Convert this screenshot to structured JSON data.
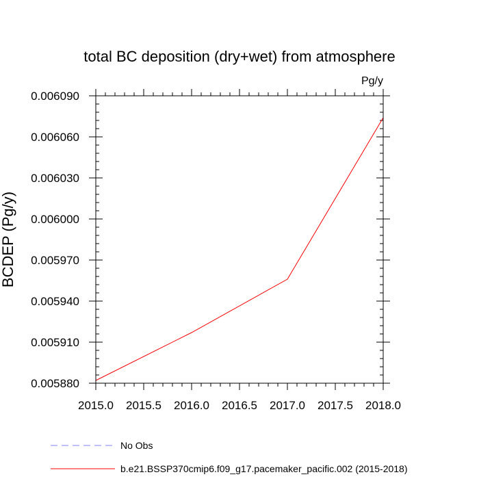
{
  "chart_data": {
    "type": "line",
    "title": "total BC deposition (dry+wet) from atmosphere",
    "units_label": "Pg/y",
    "ylabel": "BCDEP  (Pg/y)",
    "xlabel": "",
    "xlim": [
      2015.0,
      2018.0
    ],
    "ylim": [
      0.00588,
      0.00609
    ],
    "x_major_ticks": [
      2015.0,
      2015.5,
      2016.0,
      2016.5,
      2017.0,
      2017.5,
      2018.0
    ],
    "x_tick_labels": [
      "2015.0",
      "2015.5",
      "2016.0",
      "2016.5",
      "2017.0",
      "2017.5",
      "2018.0"
    ],
    "y_major_ticks": [
      0.00588,
      0.00591,
      0.00594,
      0.00597,
      0.006,
      0.00603,
      0.00606,
      0.00609
    ],
    "y_tick_labels": [
      "0.005880",
      "0.005910",
      "0.005940",
      "0.005970",
      "0.006000",
      "0.006030",
      "0.006060",
      "0.006090"
    ],
    "grid": false,
    "legend_position": "bottom",
    "series": [
      {
        "name": "b.e21.BSSP370cmip6.f09_g17.pacemaker_pacific.002 (2015-2018)",
        "color": "#ff0000",
        "dash": "solid",
        "x": [
          2015,
          2016,
          2017,
          2018
        ],
        "y": [
          0.005882,
          0.005917,
          0.005956,
          0.006074
        ]
      }
    ],
    "legend": [
      {
        "label": "No Obs",
        "color": "#8080ff",
        "dash": "dashed"
      },
      {
        "label": "b.e21.BSSP370cmip6.f09_g17.pacemaker_pacific.002 (2015-2018)",
        "color": "#ff0000",
        "dash": "solid"
      }
    ]
  }
}
